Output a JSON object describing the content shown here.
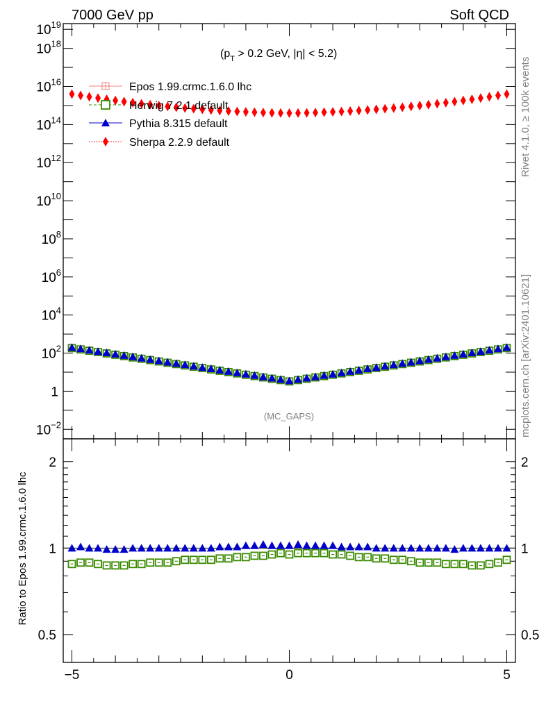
{
  "header": {
    "left_title": "7000 GeV pp",
    "right_title": "Soft QCD"
  },
  "side_texts": {
    "rivet": "Rivet 4.1.0, ≥ 100k events",
    "mcplots": "mcplots.cern.ch [arXiv:2401.10621]"
  },
  "cut_label": {
    "main": "(p",
    "sub": "T",
    "rest": " > 0.2 GeV, |η| < 5.2)"
  },
  "watermark": "(MC_GAPS)",
  "ratio_ylabel": "Ratio to Epos 1.99.crmc.1.6.0 lhc",
  "colors": {
    "epos": "#f08080",
    "herwig": "#3a8a00",
    "pythia": "#0000cc",
    "sherpa": "#ff0000"
  },
  "chart_data": [
    {
      "type": "scatter",
      "panel": "main",
      "yscale": "log",
      "xlim": [
        -5.2,
        5.2
      ],
      "ylim_log10": [
        -2.5,
        19.3
      ],
      "ytick_labels": [
        {
          "exp": -2,
          "base": "10",
          "sup": "−2"
        },
        {
          "exp": 0,
          "base": "1",
          "sup": ""
        },
        {
          "exp": 2,
          "base": "10",
          "sup": "2"
        },
        {
          "exp": 4,
          "base": "10",
          "sup": "4"
        },
        {
          "exp": 6,
          "base": "10",
          "sup": "6"
        },
        {
          "exp": 8,
          "base": "10",
          "sup": "8"
        },
        {
          "exp": 10,
          "base": "10",
          "sup": "10"
        },
        {
          "exp": 12,
          "base": "10",
          "sup": "12"
        },
        {
          "exp": 14,
          "base": "10",
          "sup": "14"
        },
        {
          "exp": 16,
          "base": "10",
          "sup": "16"
        },
        {
          "exp": 18,
          "base": "10",
          "sup": "18"
        },
        {
          "exp": 19,
          "base": "10",
          "sup": "19"
        }
      ],
      "legend": [
        {
          "key": "epos",
          "label": "Epos 1.99.crmc.1.6.0 lhc",
          "marker": "open-cross",
          "line": "solid"
        },
        {
          "key": "herwig",
          "label": "Herwig 7.2.1 default",
          "marker": "open-square",
          "line": "dashed"
        },
        {
          "key": "pythia",
          "label": "Pythia 8.315 default",
          "marker": "triangle",
          "line": "solid"
        },
        {
          "key": "sherpa",
          "label": "Sherpa 2.2.9 default",
          "marker": "diamond",
          "line": "dotted"
        }
      ],
      "legend_position": "top-left",
      "series_log10": {
        "x_range": [
          -5.0,
          5.0
        ],
        "points": 51,
        "low_center_log10": 0.55,
        "low_edge_log10": 2.3,
        "sherpa_center_log10": 14.6,
        "sherpa_edge_log10": 15.6
      }
    },
    {
      "type": "scatter",
      "panel": "ratio",
      "xlim": [
        -5.2,
        5.2
      ],
      "ylim": [
        0.4,
        2.4
      ],
      "x_ticks": [
        "−5",
        "0",
        "5"
      ],
      "x_tick_values": [
        -5,
        0,
        5
      ],
      "y_ticks": [
        "0.5",
        "1",
        "2"
      ],
      "y_tick_values": [
        0.5,
        1,
        2
      ],
      "pythia_values": [
        1.0,
        1.01,
        1.0,
        1.0,
        0.99,
        0.99,
        0.99,
        1.0,
        1.0,
        1.0,
        1.0,
        1.0,
        1.0,
        1.0,
        1.0,
        1.0,
        1.0,
        1.01,
        1.01,
        1.01,
        1.02,
        1.02,
        1.03,
        1.02,
        1.02,
        1.02,
        1.03,
        1.02,
        1.02,
        1.02,
        1.02,
        1.01,
        1.01,
        1.01,
        1.01,
        1.0,
        1.0,
        1.0,
        1.0,
        1.0,
        1.0,
        1.0,
        1.0,
        1.0,
        0.99,
        1.0,
        1.0,
        1.0,
        1.0,
        1.0,
        1.0
      ],
      "herwig_values": [
        0.88,
        0.89,
        0.89,
        0.88,
        0.87,
        0.87,
        0.87,
        0.88,
        0.88,
        0.89,
        0.89,
        0.89,
        0.9,
        0.91,
        0.91,
        0.91,
        0.91,
        0.92,
        0.92,
        0.93,
        0.93,
        0.94,
        0.94,
        0.95,
        0.96,
        0.95,
        0.96,
        0.96,
        0.96,
        0.96,
        0.95,
        0.95,
        0.94,
        0.93,
        0.93,
        0.92,
        0.92,
        0.91,
        0.91,
        0.9,
        0.89,
        0.89,
        0.89,
        0.88,
        0.88,
        0.88,
        0.87,
        0.87,
        0.88,
        0.89,
        0.91
      ]
    }
  ]
}
